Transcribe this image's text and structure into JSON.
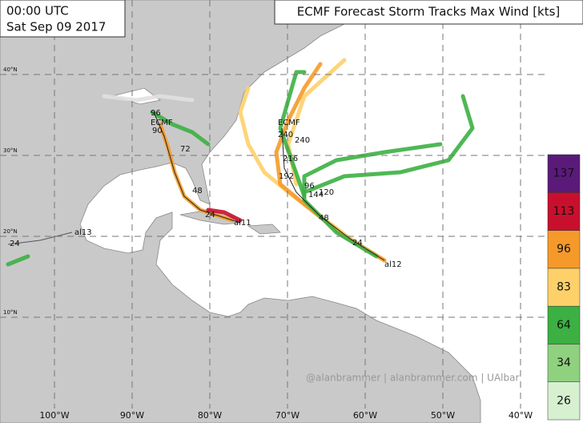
{
  "header": {
    "time": "00:00 UTC",
    "date": "Sat Sep 09 2017"
  },
  "title": "ECMF Forecast Storm Tracks Max Wind [kts]",
  "map": {
    "lon_ticks": [
      {
        "value": -100,
        "label": "100°W"
      },
      {
        "value": -90,
        "label": "90°W"
      },
      {
        "value": -80,
        "label": "80°W"
      },
      {
        "value": -70,
        "label": "70°W"
      },
      {
        "value": -60,
        "label": "60°W"
      },
      {
        "value": -50,
        "label": "50°W"
      },
      {
        "value": -40,
        "label": "40°W"
      }
    ],
    "lat_ticks": [
      {
        "value": 40,
        "label": "40°N"
      },
      {
        "value": 30,
        "label": "30°N"
      },
      {
        "value": 20,
        "label": "20°N"
      },
      {
        "value": 10,
        "label": "10°N"
      }
    ]
  },
  "track_labels": {
    "gulf": [
      "ECMF",
      "96",
      "90",
      "72",
      "48",
      "24",
      "al11"
    ],
    "atlantic": [
      "ECMF",
      "240",
      "240",
      "216",
      "192",
      "144",
      "120",
      "96",
      "48",
      "24",
      "al12"
    ],
    "mexico": [
      "al13",
      "24"
    ]
  },
  "colorbar": {
    "values": [
      26,
      34,
      64,
      83,
      96,
      113,
      137
    ],
    "colors": [
      "#d6f0d0",
      "#8fd17f",
      "#3cb043",
      "#fdd06a",
      "#f59a2a",
      "#c8102e",
      "#5a1a7a"
    ]
  },
  "credit": "@alanbrammer | alanbrammer.com | UAlbar"
}
